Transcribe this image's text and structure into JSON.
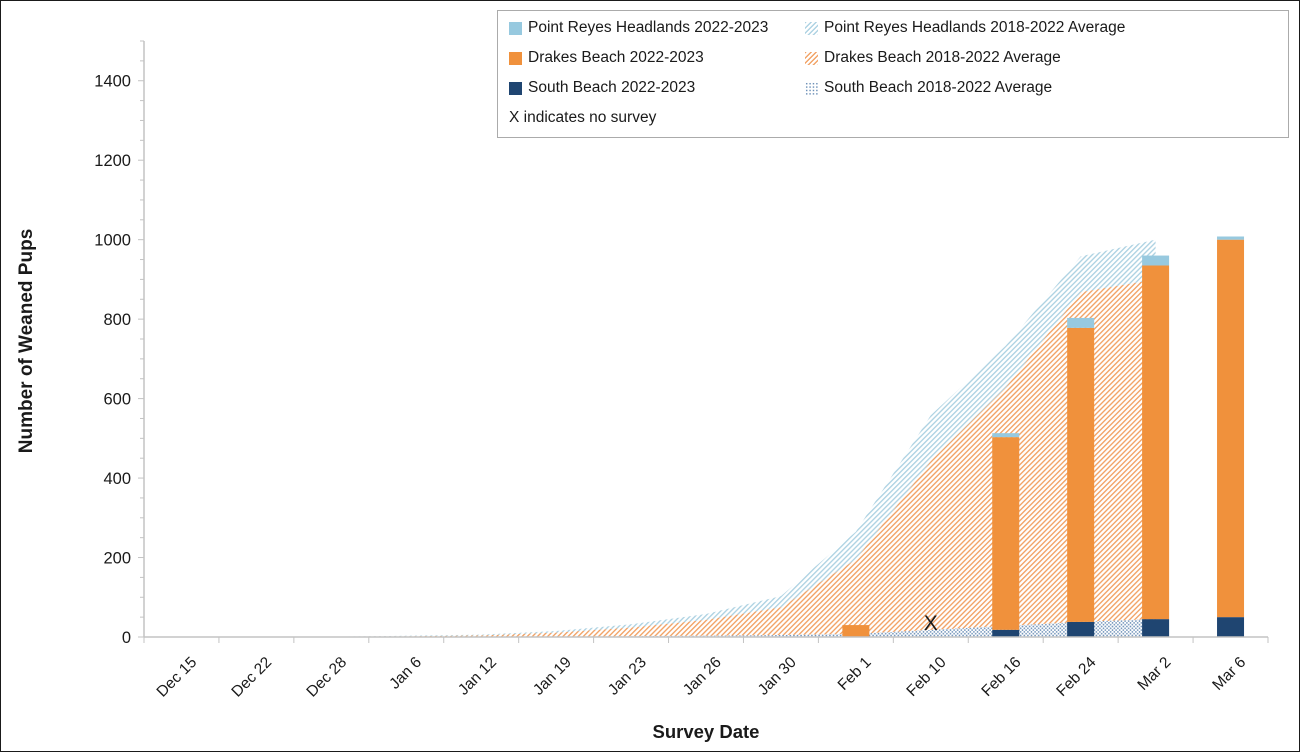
{
  "chart_data": {
    "type": "combo-stacked-bar-and-stacked-area",
    "title": "",
    "xlabel": "Survey Date",
    "ylabel": "Number of Weaned Pups",
    "ylim": [
      0,
      1500
    ],
    "ytick_major_interval": 200,
    "ytick_minor_interval": 50,
    "y_tick_labels": [
      "0",
      "200",
      "400",
      "600",
      "800",
      "1000",
      "1200",
      "1400"
    ],
    "grid": "off",
    "legend_position": "top",
    "categories": [
      "Dec 15",
      "Dec 22",
      "Dec 28",
      "Jan 6",
      "Jan 12",
      "Jan 19",
      "Jan 23",
      "Jan 26",
      "Jan 30",
      "Feb 1",
      "Feb 10",
      "Feb 16",
      "Feb 24",
      "Mar 2",
      "Mar 6"
    ],
    "no_survey_marker": {
      "category": "Feb 10",
      "symbol": "X",
      "y_value": 35
    },
    "bar_series": [
      {
        "name": "South Beach 2022-2023",
        "color": "#1F4571",
        "values": [
          0,
          0,
          0,
          0,
          0,
          0,
          0,
          0,
          0,
          0,
          null,
          18,
          38,
          45,
          50
        ]
      },
      {
        "name": "Drakes Beach 2022-2023",
        "color": "#F0913C",
        "values": [
          0,
          0,
          0,
          0,
          0,
          0,
          0,
          0,
          0,
          30,
          null,
          485,
          740,
          890,
          950
        ]
      },
      {
        "name": "Point Reyes Headlands 2022-2023",
        "color": "#97C9DF",
        "values": [
          0,
          0,
          0,
          0,
          0,
          0,
          0,
          0,
          0,
          0,
          null,
          10,
          25,
          25,
          8
        ]
      }
    ],
    "area_series": [
      {
        "name": "South Beach 2018-2022 Average",
        "pattern": "dots",
        "color": "#6E91B8",
        "values": [
          0,
          0,
          0,
          0,
          0,
          1,
          2,
          3,
          5,
          8,
          18,
          28,
          38,
          45,
          null
        ]
      },
      {
        "name": "Drakes Beach 2018-2022 Average",
        "pattern": "diag",
        "color": "#F2A468",
        "values": [
          0,
          0,
          1,
          2,
          4,
          10,
          22,
          40,
          70,
          187,
          425,
          600,
          830,
          855,
          null
        ]
      },
      {
        "name": "Point Reyes Headlands 2018-2022 Average",
        "pattern": "diag",
        "color": "#AFD3E3",
        "values": [
          0,
          0,
          0,
          1,
          2,
          4,
          8,
          15,
          28,
          70,
          115,
          105,
          90,
          100,
          null
        ]
      }
    ]
  },
  "axes": {
    "x_title": "Survey Date",
    "y_title": "Number of Weaned Pups"
  },
  "legend": {
    "items": [
      {
        "label": "Point Reyes Headlands 2022-2023",
        "swatch": {
          "type": "solid",
          "color": "#97C9DF"
        },
        "col": 1
      },
      {
        "label": "Point Reyes Headlands 2018-2022 Average",
        "swatch": {
          "type": "hatch",
          "color": "#AFD3E3"
        },
        "col": 2
      },
      {
        "label": "Drakes Beach 2022-2023",
        "swatch": {
          "type": "solid",
          "color": "#F0913C"
        },
        "col": 1
      },
      {
        "label": "Drakes Beach 2018-2022 Average",
        "swatch": {
          "type": "hatch",
          "color": "#F2A468"
        },
        "col": 2
      },
      {
        "label": "South Beach 2022-2023",
        "swatch": {
          "type": "solid",
          "color": "#1F4571"
        },
        "col": 1
      },
      {
        "label": "South Beach 2018-2022 Average",
        "swatch": {
          "type": "dots",
          "color": "#6E91B8"
        },
        "col": 2
      }
    ],
    "note": "X indicates no survey"
  },
  "colors": {
    "axis_line": "#C3C3C3",
    "tick": "#C3C3C3",
    "text": "#1a1a1a"
  }
}
